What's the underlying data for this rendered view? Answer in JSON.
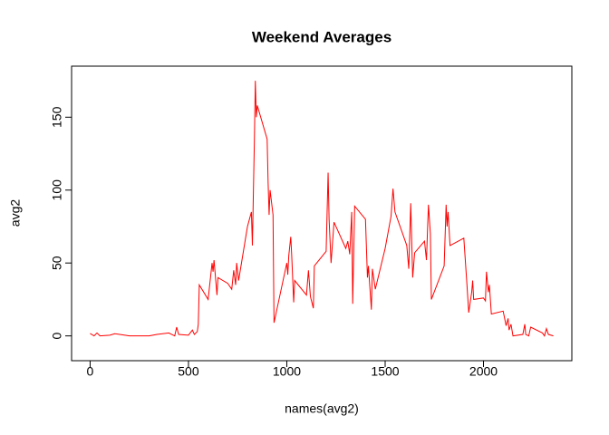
{
  "chart_data": {
    "type": "line",
    "title": "Weekend Averages",
    "x_label": "names(avg2)",
    "y_label": "avg2",
    "x": [
      0,
      20,
      35,
      50,
      100,
      125,
      200,
      300,
      340,
      400,
      430,
      440,
      450,
      500,
      520,
      530,
      545,
      550,
      555,
      600,
      620,
      625,
      630,
      645,
      650,
      700,
      720,
      730,
      740,
      745,
      755,
      800,
      820,
      825,
      835,
      840,
      845,
      850,
      900,
      905,
      910,
      915,
      930,
      935,
      1000,
      1005,
      1010,
      1020,
      1025,
      1035,
      1040,
      1100,
      1110,
      1120,
      1135,
      1140,
      1200,
      1210,
      1215,
      1225,
      1240,
      1300,
      1310,
      1320,
      1330,
      1335,
      1345,
      1400,
      1410,
      1415,
      1430,
      1435,
      1450,
      1500,
      1530,
      1540,
      1550,
      1610,
      1620,
      1630,
      1640,
      1650,
      1700,
      1710,
      1720,
      1730,
      1735,
      1800,
      1810,
      1815,
      1820,
      1830,
      1900,
      1915,
      1925,
      1940,
      1945,
      1950,
      2000,
      2010,
      2015,
      2025,
      2030,
      2040,
      2100,
      2115,
      2125,
      2130,
      2140,
      2150,
      2200,
      2210,
      2215,
      2230,
      2240,
      2300,
      2310,
      2320,
      2330,
      2355
    ],
    "series": [
      {
        "name": "avg2",
        "color": "#ff0000",
        "values": [
          1.7,
          0,
          2,
          0,
          0.5,
          1.5,
          0,
          0,
          1,
          2,
          0,
          6,
          1,
          0.5,
          4,
          1,
          3,
          8,
          35,
          25,
          50,
          44,
          52,
          28,
          40,
          36,
          32,
          45,
          35,
          50,
          38,
          75,
          85,
          62,
          133,
          175,
          150,
          158,
          135,
          105,
          83,
          100,
          83,
          9,
          50,
          42,
          55,
          68,
          55,
          23,
          38,
          28,
          45,
          27,
          19,
          48,
          58,
          112,
          80,
          50,
          78,
          60,
          65,
          56,
          85,
          22,
          89,
          80,
          40,
          48,
          18,
          46,
          32,
          60,
          82,
          101,
          85,
          62,
          46,
          91,
          40,
          57,
          65,
          52,
          90,
          70,
          25,
          48,
          90,
          75,
          85,
          62,
          67,
          37,
          16,
          30,
          38,
          25,
          26,
          24,
          44,
          30,
          35,
          15,
          17,
          7,
          12,
          4,
          8,
          0,
          1,
          8,
          1,
          0,
          6,
          2,
          0,
          5,
          1,
          0
        ]
      }
    ],
    "xlim": [
      -94.2,
      2449.2
    ],
    "ylim": [
      -17,
      185
    ],
    "xticks": [
      0,
      500,
      1000,
      1500,
      2000
    ],
    "yticks": [
      0,
      50,
      100,
      150
    ],
    "grid": false
  }
}
